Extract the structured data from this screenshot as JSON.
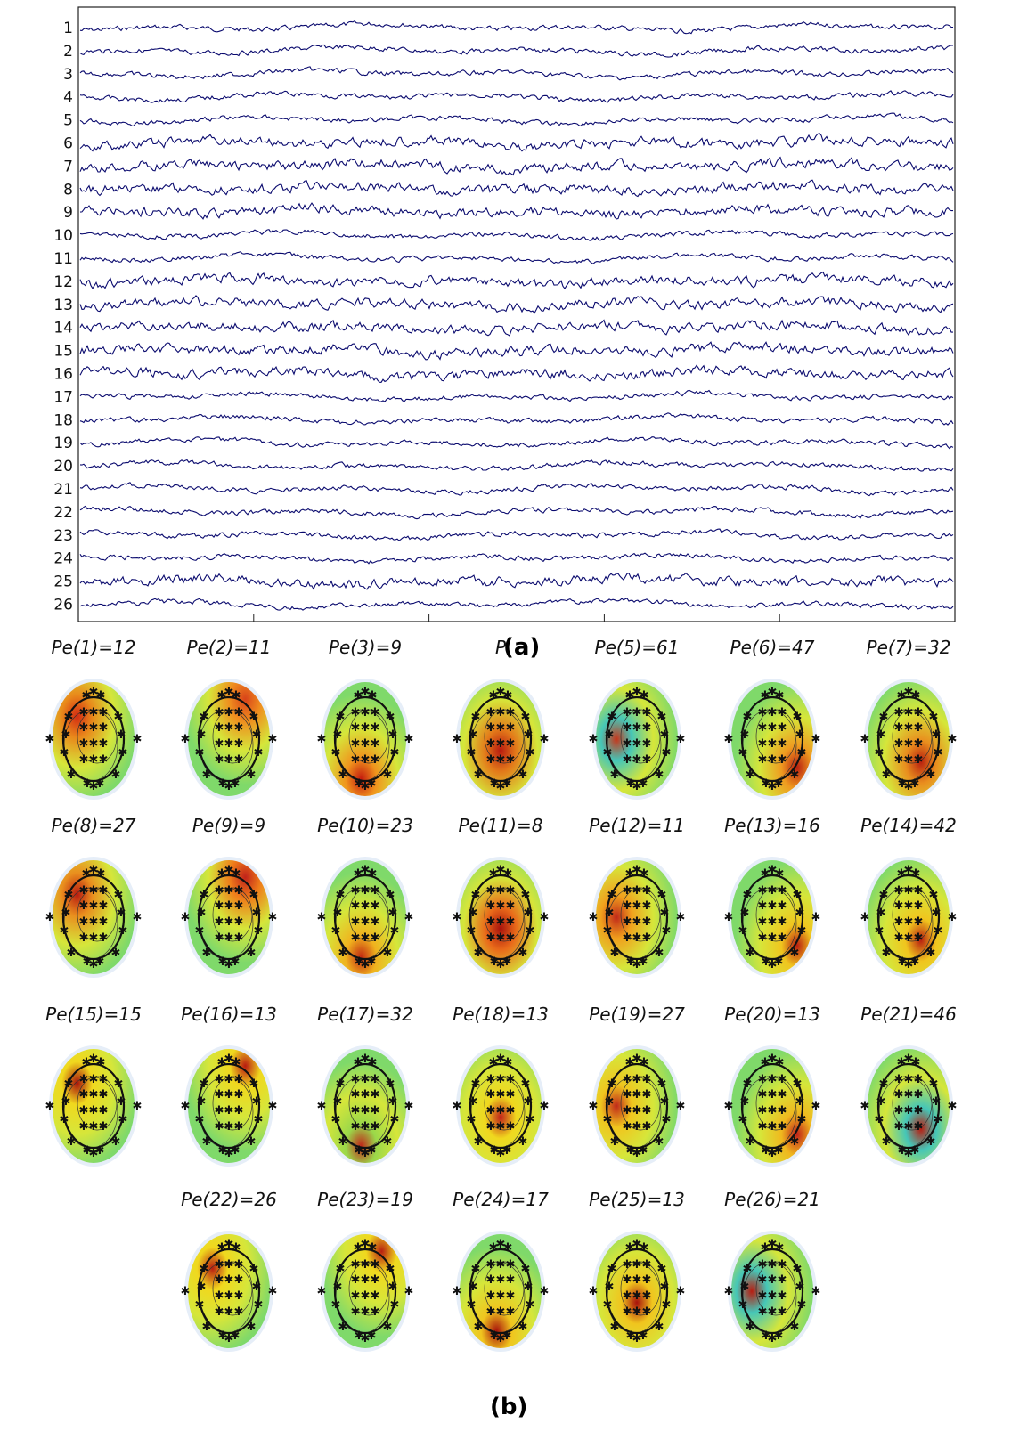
{
  "figure": {
    "panel_a_caption": "(a)",
    "panel_b_caption": "(b)"
  },
  "eeg": {
    "channel_labels": [
      "1",
      "2",
      "3",
      "4",
      "5",
      "6",
      "7",
      "8",
      "9",
      "10",
      "11",
      "12",
      "13",
      "14",
      "15",
      "16",
      "17",
      "18",
      "19",
      "20",
      "21",
      "22",
      "23",
      "24",
      "25",
      "26"
    ],
    "trace_color": "#0a0a6e",
    "x_tick_count": 4
  },
  "topomaps": [
    {
      "label": "Pe(1)=12",
      "hot": [
        "#d32a12",
        "#e9891b"
      ]
    },
    {
      "label": "Pe(2)=11",
      "hot": [
        "#d8431a",
        "#ef8c1e"
      ]
    },
    {
      "label": "Pe(3)=9",
      "hot": [
        "#c41a0e",
        "#f0941d"
      ]
    },
    {
      "label": "P",
      "hot": [
        "#b81a10",
        "#e37a1a"
      ]
    },
    {
      "label": "Pe(5)=61",
      "hot": [
        "#c7351a",
        "#45c6b8"
      ]
    },
    {
      "label": "Pe(6)=47",
      "hot": [
        "#b71e10",
        "#ef9a20"
      ]
    },
    {
      "label": "Pe(7)=32",
      "hot": [
        "#b8200f",
        "#e98e1e"
      ]
    },
    {
      "label": "Pe(8)=27",
      "hot": [
        "#b81a10",
        "#e98e1e"
      ]
    },
    {
      "label": "Pe(9)=9",
      "hot": [
        "#c0221a",
        "#ef7c1a"
      ]
    },
    {
      "label": "Pe(10)=23",
      "hot": [
        "#c22a12",
        "#f0b21e"
      ]
    },
    {
      "label": "Pe(11)=8",
      "hot": [
        "#a8120c",
        "#e96a1a"
      ]
    },
    {
      "label": "Pe(12)=11",
      "hot": [
        "#c0281a",
        "#f0a01d"
      ]
    },
    {
      "label": "Pe(13)=16",
      "hot": [
        "#b81c10",
        "#f0c51e"
      ]
    },
    {
      "label": "Pe(14)=42",
      "hot": [
        "#b71e10",
        "#f0c51e"
      ]
    },
    {
      "label": "Pe(15)=15",
      "hot": [
        "#a8120c",
        "#f0d81e"
      ]
    },
    {
      "label": "Pe(16)=13",
      "hot": [
        "#b81a10",
        "#f0d81e"
      ]
    },
    {
      "label": "Pe(17)=32",
      "hot": [
        "#c0281a",
        "#9ad84a"
      ]
    },
    {
      "label": "Pe(18)=13",
      "hot": [
        "#c0221a",
        "#f0d81e"
      ]
    },
    {
      "label": "Pe(19)=27",
      "hot": [
        "#c0281a",
        "#f0c51e"
      ]
    },
    {
      "label": "Pe(20)=13",
      "hot": [
        "#c0221a",
        "#f0b81e"
      ]
    },
    {
      "label": "Pe(21)=46",
      "hot": [
        "#b81c10",
        "#45c6b8"
      ]
    },
    {
      "label": "Pe(22)=26",
      "hot": [
        "#b81c10",
        "#f0d81e"
      ]
    },
    {
      "label": "Pe(23)=19",
      "hot": [
        "#b71e10",
        "#f0d81e"
      ]
    },
    {
      "label": "Pe(24)=17",
      "hot": [
        "#a8120c",
        "#f0c51e"
      ]
    },
    {
      "label": "Pe(25)=13",
      "hot": [
        "#a8120c",
        "#f0c51e"
      ]
    },
    {
      "label": "Pe(26)=21",
      "hot": [
        "#b81c10",
        "#45c6b8"
      ]
    }
  ]
}
